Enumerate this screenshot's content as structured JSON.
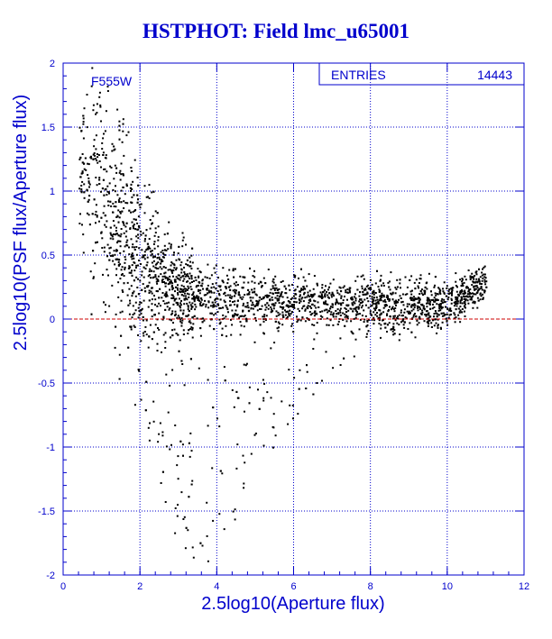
{
  "title": "HSTPHOT: Field lmc_u65001",
  "colors": {
    "axis": "#0000cc",
    "grid": "#0000cc",
    "points": "#000000",
    "reference_line": "#cc0000"
  },
  "stats_box": {
    "entries_label": "ENTRIES",
    "entries_value": "14443"
  },
  "filter_label": "F555W",
  "chart_data": {
    "type": "scatter",
    "title": "HSTPHOT: Field lmc_u65001",
    "xlabel": "2.5log10(Aperture flux)",
    "ylabel": "2.5log10(PSF flux/Aperture flux)",
    "xlim": [
      0,
      12
    ],
    "ylim": [
      -2,
      2
    ],
    "x_ticks": [
      0,
      2,
      4,
      6,
      8,
      10,
      12
    ],
    "y_ticks": [
      -2,
      -1.5,
      -1,
      -0.5,
      0,
      0.5,
      1,
      1.5,
      2
    ],
    "x_tick_labels": [
      "0",
      "2",
      "4",
      "6",
      "8",
      "10",
      "12"
    ],
    "y_tick_labels": [
      "-2",
      "-1.5",
      "-1",
      "-0.5",
      "0",
      "0.5",
      "1",
      "1.5",
      "2"
    ],
    "grid": true,
    "reference_line": {
      "y": 0,
      "style": "dashed"
    },
    "entries": 14443,
    "distribution": {
      "note": "dense point cloud; representative envelope by magnitude bin",
      "x": [
        0.5,
        1.0,
        1.5,
        2.0,
        2.5,
        3.0,
        3.5,
        4.0,
        5.0,
        6.0,
        7.0,
        8.0,
        9.0,
        10.0,
        11.0
      ],
      "y_center": [
        1.2,
        1.0,
        0.7,
        0.45,
        0.3,
        0.22,
        0.18,
        0.16,
        0.15,
        0.14,
        0.13,
        0.13,
        0.12,
        0.12,
        0.3
      ],
      "y_low": [
        0.2,
        -0.2,
        -0.5,
        -0.9,
        -1.4,
        -1.8,
        -1.9,
        -1.9,
        -1.2,
        -0.8,
        -0.4,
        -0.2,
        -0.1,
        -0.05,
        0.1
      ],
      "y_high": [
        2.0,
        2.0,
        1.7,
        1.3,
        0.9,
        0.7,
        0.6,
        0.5,
        0.45,
        0.4,
        0.4,
        0.4,
        0.4,
        0.35,
        0.45
      ]
    }
  }
}
